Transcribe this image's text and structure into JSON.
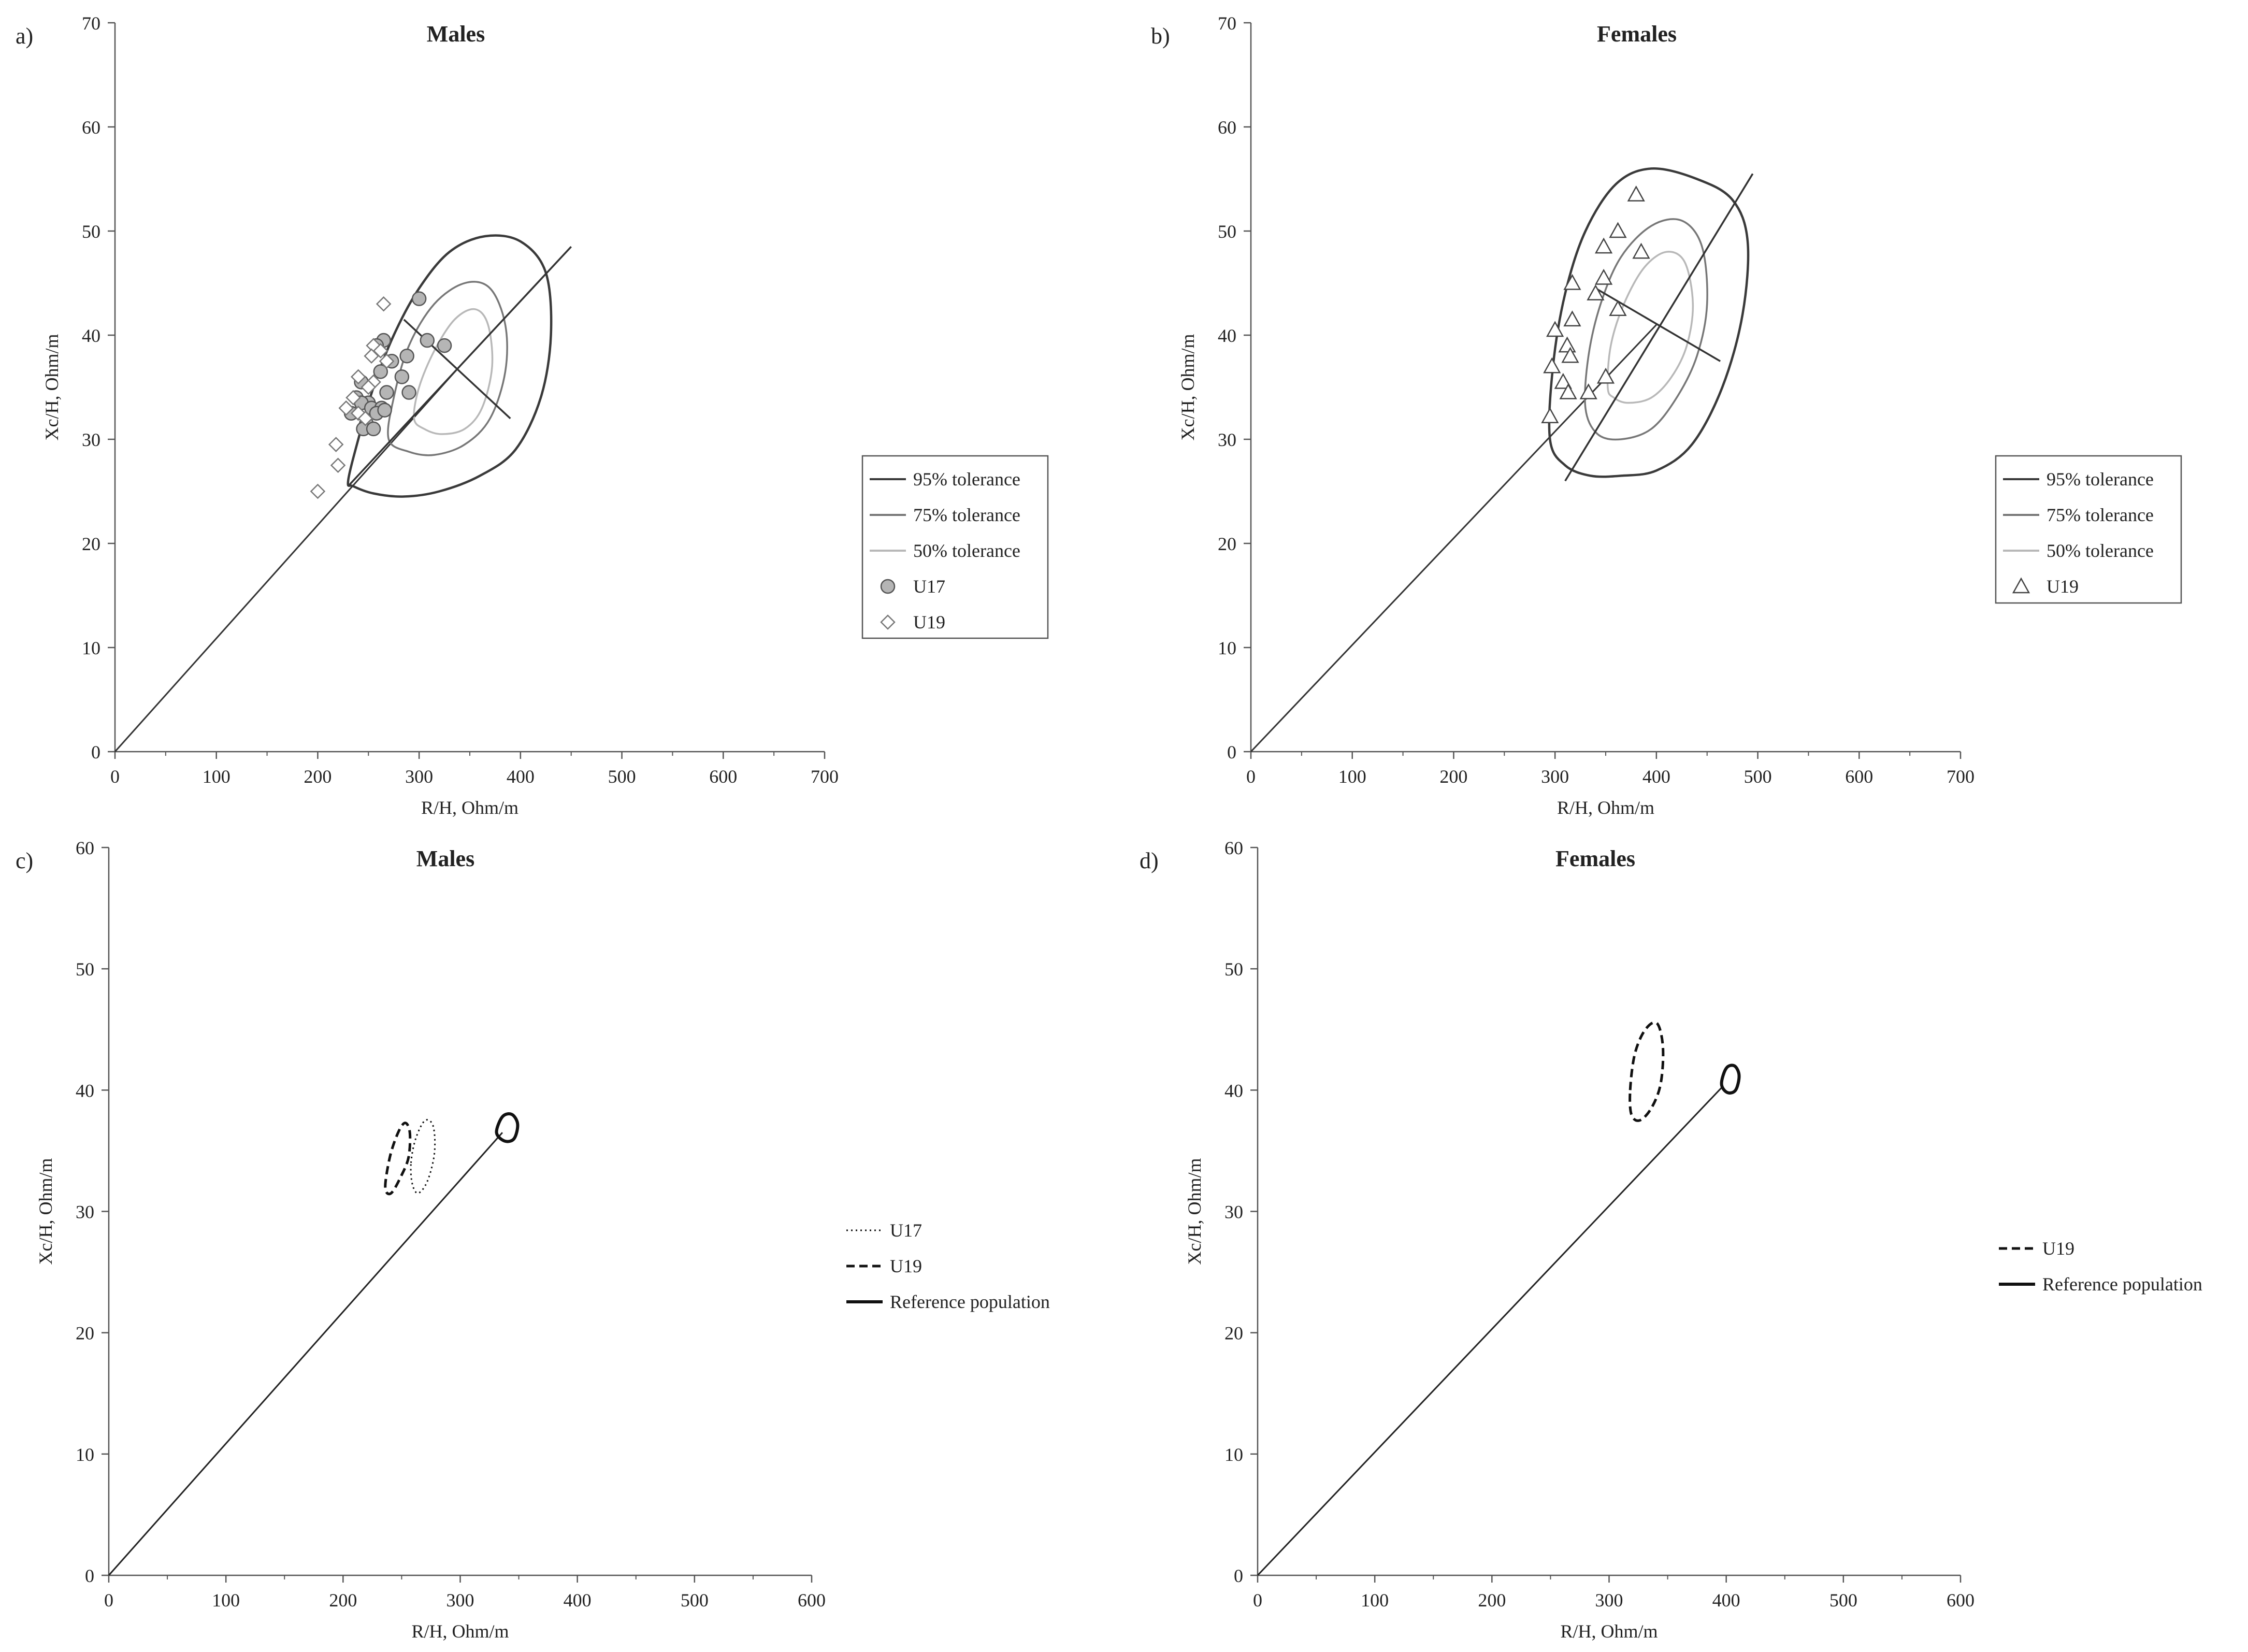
{
  "chart_data": [
    {
      "panel": "a)",
      "type": "scatter",
      "title": "Males",
      "xlabel": "R/H, Ohm/m",
      "ylabel": "Xc/H, Ohm/m",
      "xlim": [
        0,
        700
      ],
      "ylim": [
        0,
        70
      ],
      "xticks": [
        "0",
        "100",
        "200",
        "300",
        "400",
        "500",
        "600",
        "700"
      ],
      "yticks": [
        "0",
        "10",
        "20",
        "30",
        "40",
        "50",
        "60",
        "70"
      ],
      "legend": [
        "95% tolerance",
        "75% tolerance",
        "50% tolerance",
        "U17",
        "U19"
      ],
      "tolerance_center": [
        340,
        37
      ],
      "major_axis": [
        [
          230,
          25.5
        ],
        [
          450,
          48.5
        ]
      ],
      "minor_axis": [
        [
          285,
          41.5
        ],
        [
          390,
          32
        ]
      ],
      "tolerance_ellipses": [
        {
          "name": "95% tolerance",
          "outline": [
            [
              230,
              26
            ],
            [
              240,
              30
            ],
            [
              255,
              35
            ],
            [
              275,
              40
            ],
            [
              300,
              44.5
            ],
            [
              330,
              48
            ],
            [
              365,
              49.5
            ],
            [
              400,
              49
            ],
            [
              425,
              46
            ],
            [
              430,
              40
            ],
            [
              420,
              34
            ],
            [
              395,
              29
            ],
            [
              360,
              26.5
            ],
            [
              320,
              25
            ],
            [
              285,
              24.5
            ],
            [
              255,
              24.8
            ],
            [
              235,
              25.5
            ]
          ]
        },
        {
          "name": "75% tolerance",
          "outline": [
            [
              270,
              30
            ],
            [
              275,
              34
            ],
            [
              290,
              39
            ],
            [
              315,
              43
            ],
            [
              345,
              45
            ],
            [
              370,
              44.5
            ],
            [
              385,
              41
            ],
            [
              385,
              36.5
            ],
            [
              370,
              32
            ],
            [
              345,
              29.5
            ],
            [
              315,
              28.5
            ],
            [
              290,
              28.8
            ]
          ]
        },
        {
          "name": "50% tolerance",
          "outline": [
            [
              295,
              32
            ],
            [
              300,
              35
            ],
            [
              315,
              38.5
            ],
            [
              335,
              41.5
            ],
            [
              355,
              42.5
            ],
            [
              368,
              41
            ],
            [
              372,
              37
            ],
            [
              362,
              33
            ],
            [
              345,
              31
            ],
            [
              322,
              30.5
            ],
            [
              305,
              31
            ]
          ]
        }
      ],
      "series": [
        {
          "name": "U17",
          "marker": "circle",
          "points": [
            [
              300,
              43.5
            ],
            [
              265,
              39.5
            ],
            [
              258,
              39
            ],
            [
              308,
              39.5
            ],
            [
              325,
              39
            ],
            [
              288,
              38
            ],
            [
              273,
              37.5
            ],
            [
              262,
              36.5
            ],
            [
              283,
              36
            ],
            [
              243,
              35.5
            ],
            [
              268,
              34.5
            ],
            [
              290,
              34.5
            ],
            [
              238,
              34
            ],
            [
              250,
              33.5
            ],
            [
              243,
              33.5
            ],
            [
              253,
              33
            ],
            [
              263,
              33
            ],
            [
              233,
              32.5
            ],
            [
              258,
              32.5
            ],
            [
              266,
              32.8
            ],
            [
              248,
              31.5
            ],
            [
              245,
              31
            ],
            [
              255,
              31
            ]
          ]
        },
        {
          "name": "U19",
          "marker": "diamond",
          "points": [
            [
              265,
              43
            ],
            [
              255,
              39
            ],
            [
              262,
              38.5
            ],
            [
              253,
              38
            ],
            [
              268,
              37.5
            ],
            [
              240,
              36
            ],
            [
              255,
              35.5
            ],
            [
              250,
              35
            ],
            [
              235,
              34
            ],
            [
              228,
              33
            ],
            [
              240,
              32.5
            ],
            [
              247,
              32
            ],
            [
              218,
              29.5
            ],
            [
              220,
              27.5
            ],
            [
              200,
              25
            ]
          ]
        }
      ]
    },
    {
      "panel": "b)",
      "type": "scatter",
      "title": "Females",
      "xlabel": "R/H, Ohm/m",
      "ylabel": "Xc/H, Ohm/m",
      "xlim": [
        0,
        700
      ],
      "ylim": [
        0,
        70
      ],
      "xticks": [
        "0",
        "100",
        "200",
        "300",
        "400",
        "500",
        "600",
        "700"
      ],
      "yticks": [
        "0",
        "10",
        "20",
        "30",
        "40",
        "50",
        "60",
        "70"
      ],
      "legend": [
        "95% tolerance",
        "75% tolerance",
        "50% tolerance",
        "U19"
      ],
      "tolerance_center": [
        400,
        41
      ],
      "major_axis": [
        [
          310,
          26
        ],
        [
          495,
          55.5
        ]
      ],
      "minor_axis": [
        [
          340,
          44.5
        ],
        [
          463,
          37.5
        ]
      ],
      "tolerance_ellipses": [
        {
          "name": "95% tolerance",
          "outline": [
            [
              295,
              30
            ],
            [
              298,
              37
            ],
            [
              310,
              44
            ],
            [
              330,
              50
            ],
            [
              360,
              54.5
            ],
            [
              395,
              56
            ],
            [
              440,
              55
            ],
            [
              475,
              53
            ],
            [
              490,
              49
            ],
            [
              485,
              42
            ],
            [
              465,
              35
            ],
            [
              435,
              29.5
            ],
            [
              400,
              27
            ],
            [
              365,
              26.5
            ],
            [
              335,
              26.5
            ],
            [
              310,
              27.5
            ]
          ]
        },
        {
          "name": "75% tolerance",
          "outline": [
            [
              330,
              33
            ],
            [
              333,
              38
            ],
            [
              345,
              43
            ],
            [
              365,
              47.5
            ],
            [
              395,
              50.5
            ],
            [
              425,
              51
            ],
            [
              445,
              48.5
            ],
            [
              450,
              43
            ],
            [
              440,
              38
            ],
            [
              420,
              34
            ],
            [
              395,
              31
            ],
            [
              365,
              30
            ],
            [
              342,
              30.5
            ]
          ]
        },
        {
          "name": "50% tolerance",
          "outline": [
            [
              352,
              35
            ],
            [
              355,
              39
            ],
            [
              368,
              43
            ],
            [
              388,
              46.5
            ],
            [
              410,
              48
            ],
            [
              428,
              47
            ],
            [
              436,
              43
            ],
            [
              430,
              39
            ],
            [
              415,
              36
            ],
            [
              395,
              34
            ],
            [
              372,
              33.5
            ],
            [
              358,
              34
            ]
          ]
        }
      ],
      "series": [
        {
          "name": "U19",
          "marker": "triangle",
          "points": [
            [
              380,
              53.5
            ],
            [
              362,
              50
            ],
            [
              348,
              48.5
            ],
            [
              385,
              48
            ],
            [
              348,
              45.5
            ],
            [
              340,
              44
            ],
            [
              317,
              45
            ],
            [
              362,
              42.5
            ],
            [
              317,
              41.5
            ],
            [
              300,
              40.5
            ],
            [
              312,
              39
            ],
            [
              315,
              38
            ],
            [
              297,
              37
            ],
            [
              308,
              35.5
            ],
            [
              350,
              36
            ],
            [
              313,
              34.5
            ],
            [
              333,
              34.5
            ],
            [
              295,
              32.2
            ]
          ]
        }
      ]
    },
    {
      "panel": "c)",
      "type": "line",
      "title": "Males",
      "xlabel": "R/H, Ohm/m",
      "ylabel": "Xc/H, Ohm/m",
      "xlim": [
        0,
        600
      ],
      "ylim": [
        0,
        60
      ],
      "xticks": [
        "0",
        "100",
        "200",
        "300",
        "400",
        "500",
        "600"
      ],
      "yticks": [
        "0",
        "10",
        "20",
        "30",
        "40",
        "50",
        "60"
      ],
      "legend": [
        "U17",
        "U19",
        "Reference population"
      ],
      "reference_line": [
        [
          0,
          0
        ],
        [
          336,
          36.5
        ]
      ],
      "confidence_ellipses": [
        {
          "name": "U17",
          "style": "dotted",
          "outline": [
            [
              258,
              34
            ],
            [
              262,
              36
            ],
            [
              270,
              37.5
            ],
            [
              277,
              37
            ],
            [
              278,
              34.8
            ],
            [
              272,
              32.5
            ],
            [
              264,
              31.5
            ],
            [
              259,
              32.3
            ]
          ]
        },
        {
          "name": "U19",
          "style": "dashed",
          "outline": [
            [
              236,
              32
            ],
            [
              240,
              34.5
            ],
            [
              247,
              36.5
            ],
            [
              253,
              37.3
            ],
            [
              257,
              36.5
            ],
            [
              256,
              34.5
            ],
            [
              250,
              33
            ],
            [
              241,
              31.5
            ]
          ]
        },
        {
          "name": "Reference population",
          "style": "solid",
          "outline": [
            [
              331,
              36.5
            ],
            [
              336,
              37.8
            ],
            [
              344,
              38
            ],
            [
              349,
              37.2
            ],
            [
              346,
              36
            ],
            [
              338,
              35.8
            ]
          ]
        }
      ]
    },
    {
      "panel": "d)",
      "type": "line",
      "title": "Females",
      "xlabel": "R/H, Ohm/m",
      "ylabel": "Xc/H, Ohm/m",
      "xlim": [
        0,
        600
      ],
      "ylim": [
        0,
        60
      ],
      "xticks": [
        "0",
        "100",
        "200",
        "300",
        "400",
        "500",
        "600"
      ],
      "yticks": [
        "0",
        "10",
        "20",
        "30",
        "40",
        "50",
        "60"
      ],
      "legend": [
        "U19",
        "Reference population"
      ],
      "reference_line": [
        [
          0,
          0
        ],
        [
          397,
          40.3
        ]
      ],
      "confidence_ellipses": [
        {
          "name": "U19",
          "style": "dashed",
          "outline": [
            [
              318,
              40
            ],
            [
              322,
              43
            ],
            [
              331,
              45
            ],
            [
              341,
              45.5
            ],
            [
              346,
              43.5
            ],
            [
              344,
              40.5
            ],
            [
              336,
              38.5
            ],
            [
              326,
              37.5
            ],
            [
              319,
              38
            ]
          ]
        },
        {
          "name": "Reference population",
          "style": "solid",
          "outline": [
            [
              396,
              40.5
            ],
            [
              400,
              41.8
            ],
            [
              407,
              42
            ],
            [
              411,
              41.2
            ],
            [
              408,
              40
            ],
            [
              401,
              39.8
            ]
          ]
        }
      ]
    }
  ]
}
